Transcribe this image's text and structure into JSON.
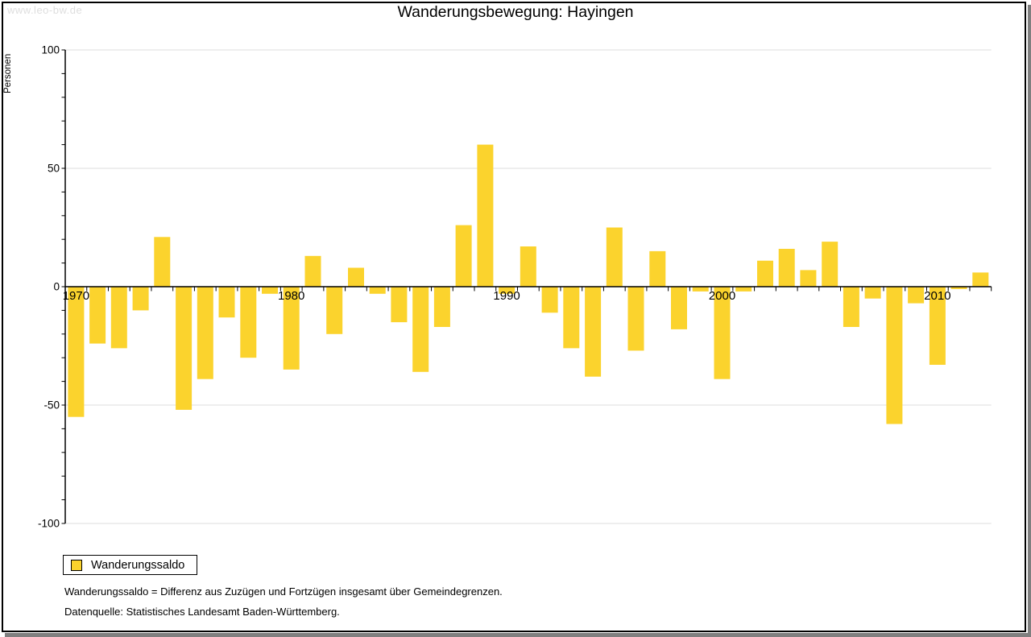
{
  "header": {
    "watermark": "www.leo-bw.de",
    "title": "Wanderungsbewegung: Hayingen"
  },
  "legend": {
    "label": "Wanderungssaldo"
  },
  "footnotes": {
    "definition": "Wanderungssaldo = Differenz aus Zuzügen und Fortzügen insgesamt über Gemeindegrenzen.",
    "source": "Datenquelle: Statistisches Landesamt Baden-Württemberg."
  },
  "colors": {
    "bar": "#FBD32D",
    "grid": "#dddddd",
    "axis": "#000000",
    "text": "#000000",
    "watermark": "#dedede",
    "frame_shadow": "#7f7f7f"
  },
  "chart_data": {
    "type": "bar",
    "title": "Wanderungsbewegung: Hayingen",
    "ylabel": "Personen",
    "xlabel": "",
    "ylim": [
      -100,
      100
    ],
    "y_major_ticks": [
      100,
      50,
      0,
      -50,
      -100
    ],
    "y_minor_tick_step": 10,
    "x_decade_labels": [
      1970,
      1980,
      1990,
      2000,
      2010
    ],
    "grid": "horizontal",
    "legend_position": "bottom-left",
    "series": [
      {
        "name": "Wanderungssaldo",
        "years": [
          1970,
          1971,
          1972,
          1973,
          1974,
          1975,
          1976,
          1977,
          1978,
          1979,
          1980,
          1981,
          1982,
          1983,
          1984,
          1985,
          1986,
          1987,
          1988,
          1989,
          1990,
          1991,
          1992,
          1993,
          1994,
          1995,
          1996,
          1997,
          1998,
          1999,
          2000,
          2001,
          2002,
          2003,
          2004,
          2005,
          2006,
          2007,
          2008,
          2009,
          2010,
          2011,
          2012
        ],
        "values": [
          -55,
          -24,
          -26,
          -10,
          21,
          -52,
          -39,
          -13,
          -30,
          -3,
          -35,
          13,
          -20,
          8,
          -3,
          -15,
          -36,
          -17,
          26,
          60,
          -3,
          17,
          -11,
          -26,
          -38,
          25,
          -27,
          15,
          -18,
          -2,
          -39,
          -2,
          11,
          16,
          7,
          19,
          -17,
          -5,
          -58,
          -7,
          -33,
          -1,
          6
        ]
      }
    ]
  }
}
